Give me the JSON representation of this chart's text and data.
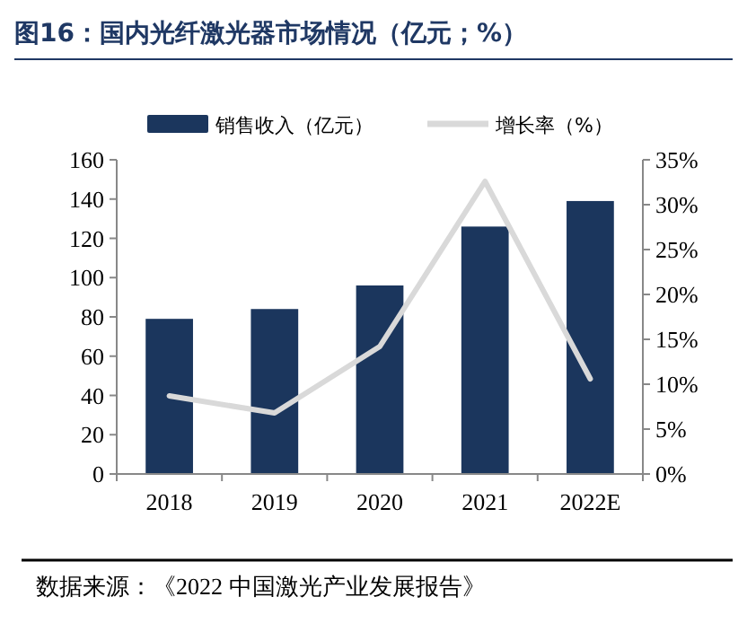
{
  "chart_data": {
    "type": "bar",
    "title": "图16：国内光纤激光器市场情况（亿元；%）",
    "categories": [
      "2018",
      "2019",
      "2020",
      "2021",
      "2022E"
    ],
    "series": [
      {
        "name": "销售收入（亿元）",
        "color": "#1b365d",
        "values": [
          79,
          84,
          96,
          126,
          139
        ]
      },
      {
        "name": "增长率（%）",
        "type": "line",
        "axis": "y2",
        "color": "#d9d9d9",
        "values": [
          8.7,
          6.8,
          14.2,
          32.6,
          10.6
        ]
      }
    ],
    "ylim": [
      0,
      160
    ],
    "yticks": [
      0,
      20,
      40,
      60,
      80,
      100,
      120,
      140,
      160
    ],
    "y2lim": [
      0,
      35
    ],
    "y2ticks": [
      {
        "value": 0,
        "label": "0%"
      },
      {
        "value": 5,
        "label": "5%"
      },
      {
        "value": 10,
        "label": "10%"
      },
      {
        "value": 15,
        "label": "15%"
      },
      {
        "value": 20,
        "label": "20%"
      },
      {
        "value": 25,
        "label": "25%"
      },
      {
        "value": 30,
        "label": "30%"
      },
      {
        "value": 35,
        "label": "35%"
      }
    ],
    "legend": "top",
    "marker": "none",
    "annotations": [
      "数据来源：《2022 中国激光产业发展报告》"
    ]
  }
}
